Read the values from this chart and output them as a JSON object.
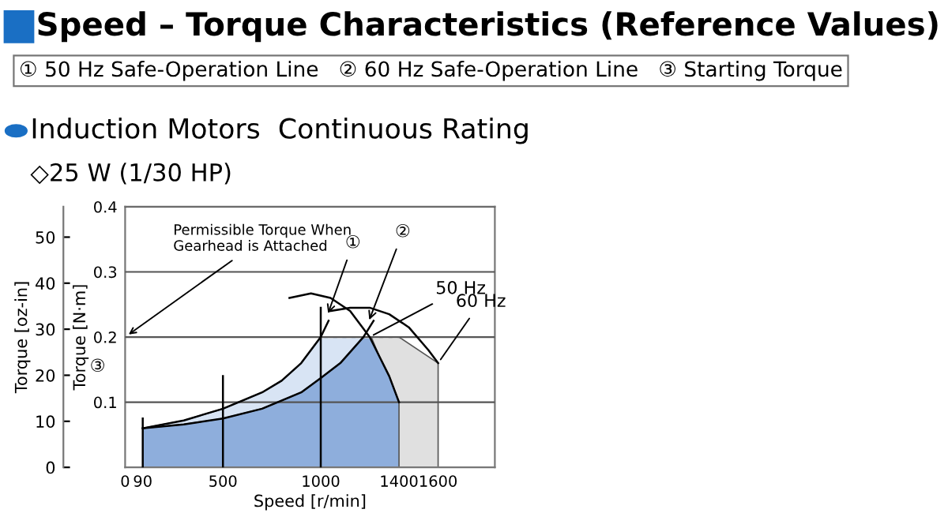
{
  "chart_data": {
    "type": "area",
    "title": "Speed – Torque Characteristics (Reference Values)",
    "subtitle": "Induction Motors  Continuous Rating",
    "xlabel": "Speed [r/min]",
    "ylabel": "Torque [N·m]",
    "y2label": "Torque [oz-in]",
    "annotations": [
      "① 50 Hz Safe-Operation Line   ② 60 Hz Safe-Operation Line   ③ Starting Torque",
      "◇25 W (1/30 HP)",
      {
        "text": "①",
        "x": 1030,
        "y": 0.23
      },
      {
        "text": "②",
        "x": 1240,
        "y": 0.22
      },
      "③"
    ],
    "series": [
      {
        "color": "#e0e0e0",
        "x": [
          1258,
          1400,
          1600,
          1600
        ],
        "values": [
          0.2,
          0.2,
          0.16,
          0
        ]
      },
      {
        "color": "#d8e4f4",
        "x": [
          90,
          300,
          500,
          700,
          800,
          900,
          1000,
          1258
        ],
        "values": [
          0.06,
          0.072,
          0.09,
          0.115,
          0.133,
          0.16,
          0.2,
          0.2
        ]
      },
      {
        "color": "#8eaedc",
        "x": [
          90,
          300,
          500,
          700,
          900,
          1000,
          1100,
          1218,
          1258,
          1300,
          1350,
          1400,
          1400
        ],
        "values": [
          0.06,
          0.066,
          0.075,
          0.09,
          0.115,
          0.137,
          0.16,
          0.2,
          0.2,
          0.17,
          0.14,
          0.1,
          0
        ]
      },
      {
        "type": "line",
        "color": "#000000",
        "x": [
          90,
          300,
          500,
          700,
          800,
          900,
          1000,
          1040
        ],
        "values": [
          0.06,
          0.072,
          0.09,
          0.115,
          0.133,
          0.16,
          0.2,
          0.225
        ]
      },
      {
        "type": "line",
        "color": "#000000",
        "x": [
          90,
          300,
          500,
          700,
          900,
          1000,
          1100,
          1218,
          1270
        ],
        "values": [
          0.06,
          0.066,
          0.075,
          0.09,
          0.115,
          0.137,
          0.16,
          0.2,
          0.225
        ]
      },
      {
        "type": "line",
        "name": "50 Hz",
        "color": "#000000",
        "x": [
          840,
          950,
          1050,
          1150,
          1250,
          1300,
          1350,
          1400
        ],
        "values": [
          0.26,
          0.267,
          0.26,
          0.24,
          0.2,
          0.17,
          0.14,
          0.1
        ]
      },
      {
        "type": "line",
        "name": "60 Hz",
        "color": "#000000",
        "x": [
          1050,
          1150,
          1250,
          1350,
          1450,
          1550,
          1600
        ],
        "values": [
          0.24,
          0.245,
          0.245,
          0.235,
          0.215,
          0.18,
          0.16
        ]
      },
      {
        "type": "line",
        "color": "#000000",
        "x": [
          90,
          90
        ],
        "values": [
          0,
          0.075
        ]
      },
      {
        "type": "line",
        "color": "#000000",
        "x": [
          500,
          500
        ],
        "values": [
          0,
          0.14
        ]
      },
      {
        "type": "line",
        "color": "#000000",
        "x": [
          1000,
          1000
        ],
        "values": [
          0,
          0.245
        ]
      }
    ],
    "xlim": [
      0,
      1890
    ],
    "xticks": [
      0,
      90,
      500,
      1000,
      1400,
      1600
    ],
    "ylim": [
      0,
      0.4
    ],
    "yticks": [
      0.1,
      0.2,
      0.3,
      0.4
    ],
    "y2lim": [
      0,
      56.6
    ],
    "y2ticks": [
      0,
      10,
      20,
      30,
      40,
      50
    ],
    "ref_lines": [
      {
        "axis": "y",
        "value": 0.2,
        "label": "Permissible Torque When\nGearhead is Attached",
        "line_style": "dashed",
        "color": "#ffffff"
      }
    ],
    "grid": "y"
  }
}
